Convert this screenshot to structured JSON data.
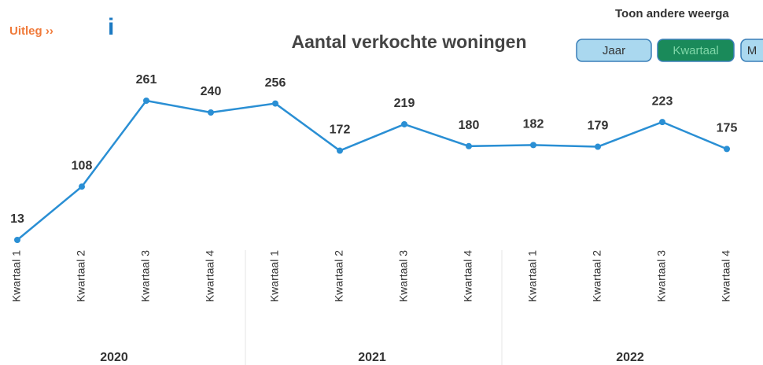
{
  "ui": {
    "explain_link": "Uitleg ››",
    "info_icon": "i",
    "view_prompt": "Toon andere weerga",
    "buttons": [
      {
        "label": "Jaar",
        "active": false
      },
      {
        "label": "Kwartaal",
        "active": true
      },
      {
        "label": "M",
        "active": false
      }
    ]
  },
  "chart_data": {
    "type": "line",
    "title": "Aantal verkochte woningen",
    "categories": [
      "Kwartaal 1",
      "Kwartaal 2",
      "Kwartaal 3",
      "Kwartaal 4",
      "Kwartaal 1",
      "Kwartaal 2",
      "Kwartaal 3",
      "Kwartaal 4",
      "Kwartaal 1",
      "Kwartaal 2",
      "Kwartaal 3",
      "Kwartaal 4"
    ],
    "groups": [
      {
        "label": "2020",
        "size": 4
      },
      {
        "label": "2021",
        "size": 4
      },
      {
        "label": "2022",
        "size": 4
      }
    ],
    "values": [
      13,
      108,
      261,
      240,
      256,
      172,
      219,
      180,
      182,
      179,
      223,
      175
    ],
    "color": "#2a8fd4"
  }
}
